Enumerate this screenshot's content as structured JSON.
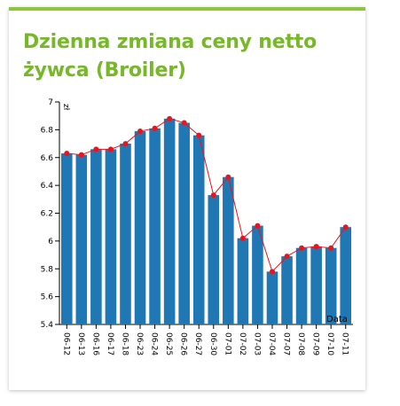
{
  "widget": {
    "title": "Dzienna zmiana ceny netto żywca (Broiler)"
  },
  "colors": {
    "accent": "#8cc63f",
    "title": "#77b82a",
    "bar": "#1f77b4",
    "line": "#e8141e"
  },
  "chart_data": {
    "type": "bar",
    "title": "Dzienna zmiana ceny netto żywca (Broiler)",
    "xlabel": "Data",
    "ylabel": "zł",
    "ylim": [
      5.4,
      7
    ],
    "yticks": [
      5.4,
      5.6,
      5.8,
      6,
      6.2,
      6.4,
      6.6,
      6.8,
      7
    ],
    "categories": [
      "06-12",
      "06-13",
      "06-16",
      "06-17",
      "06-18",
      "06-23",
      "06-24",
      "06-25",
      "06-26",
      "06-27",
      "06-30",
      "07-01",
      "07-02",
      "07-03",
      "07-04",
      "07-07",
      "07-08",
      "07-09",
      "07-10",
      "07-11"
    ],
    "series": [
      {
        "type": "bar",
        "values": [
          6.63,
          6.62,
          6.66,
          6.66,
          6.7,
          6.79,
          6.81,
          6.88,
          6.85,
          6.76,
          6.33,
          6.46,
          6.02,
          6.11,
          5.78,
          5.89,
          5.95,
          5.96,
          5.95,
          6.1
        ]
      },
      {
        "type": "line",
        "values": [
          6.63,
          6.62,
          6.66,
          6.66,
          6.7,
          6.79,
          6.81,
          6.88,
          6.85,
          6.76,
          6.33,
          6.46,
          6.02,
          6.11,
          5.78,
          5.89,
          5.95,
          5.96,
          5.95,
          6.1
        ]
      }
    ],
    "grid": false,
    "legend": "none"
  }
}
